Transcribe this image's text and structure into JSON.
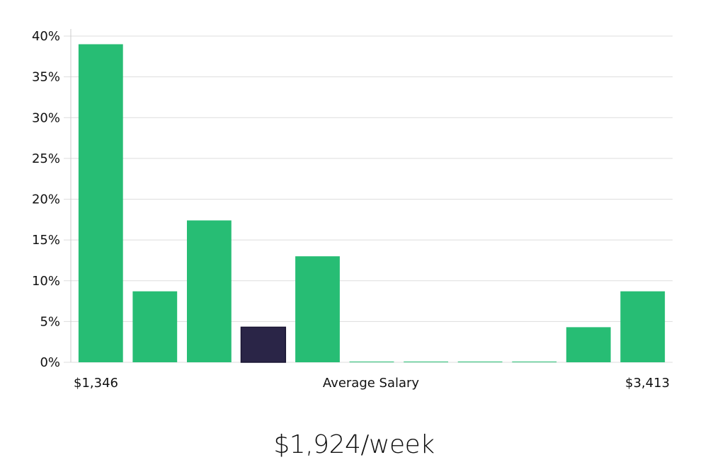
{
  "chart_data": {
    "type": "bar",
    "title": "",
    "xlabel": "Average Salary",
    "ylabel": "",
    "x_min_label": "$1,346",
    "x_max_label": "$3,413",
    "ylim": [
      0,
      40
    ],
    "yticks": [
      "0%",
      "5%",
      "10%",
      "15%",
      "20%",
      "25%",
      "30%",
      "35%",
      "40%"
    ],
    "grid": true,
    "values": [
      39,
      8.7,
      17.4,
      4.3,
      13,
      0,
      0,
      0,
      0,
      4.3,
      8.7
    ],
    "highlight_index": 3,
    "colors": {
      "bar": "#27bd74",
      "highlight": "#2a2547",
      "grid": "#dddddd",
      "axis": "#cccccc"
    }
  },
  "salary": "$1,924/week"
}
